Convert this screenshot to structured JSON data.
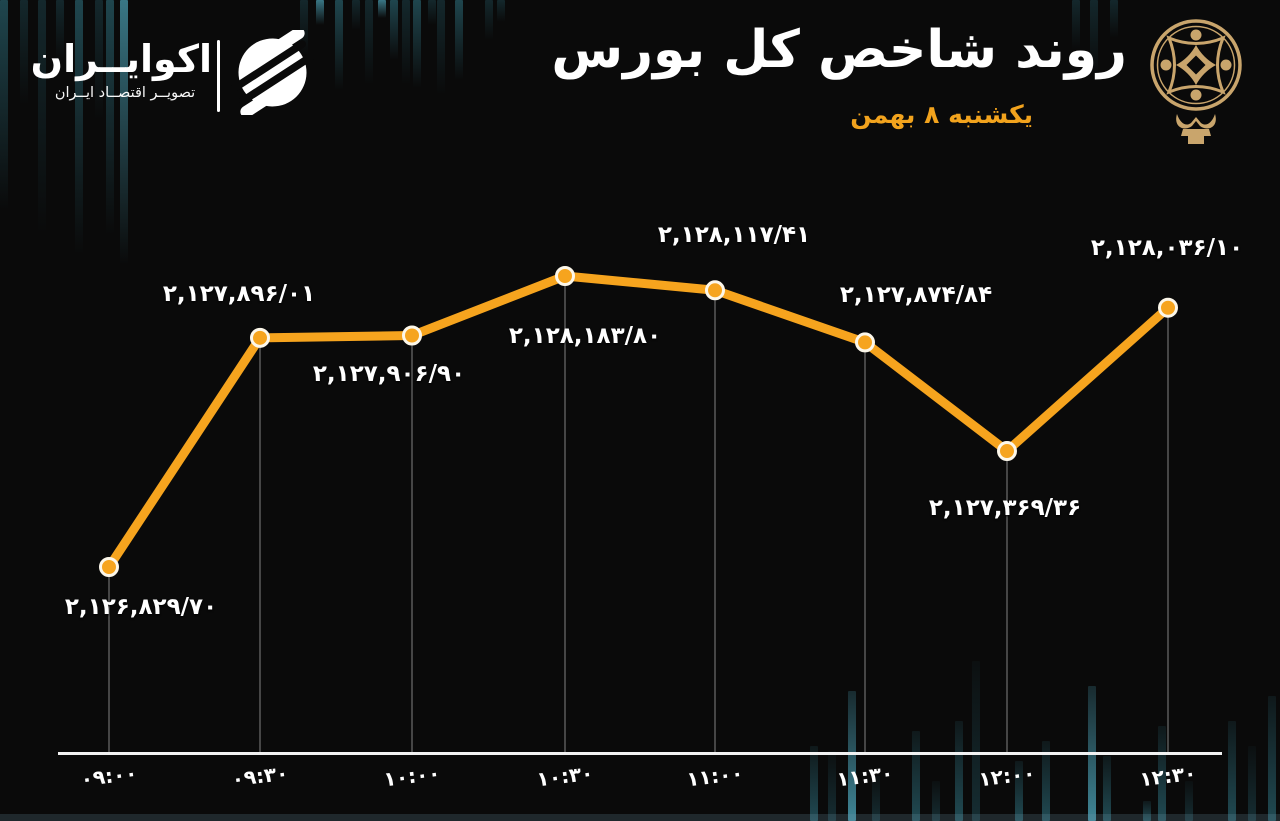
{
  "brand": {
    "name": "اکوایــران",
    "tagline": "تصویــر اقتصــاد ایــران"
  },
  "header": {
    "title": "روند شاخص کل بورس",
    "date": "یکشنبه ۸ بهمن"
  },
  "icons": {
    "brand_logo": "ecoiran-winged-circle",
    "emblem": "tehran-stock-exchange-emblem"
  },
  "colors": {
    "background": "#0a0a0a",
    "line": "#F6A41E",
    "point_fill": "#F6A41E",
    "point_ring": "#FCF7EA",
    "value_text": "#FFFFFF",
    "date_text": "#F2A31D",
    "axis": "#F2F2F2",
    "drop_line": "#5a5a5a",
    "emblem_gold": "#C9A56C"
  },
  "chart_data": {
    "type": "line",
    "title": "روند شاخص کل بورس",
    "x": [
      "۰۹:۰۰",
      "۰۹:۳۰",
      "۱۰:۰۰",
      "۱۰:۳۰",
      "۱۱:۰۰",
      "۱۱:۳۰",
      "۱۲:۰۰",
      "۱۲:۳۰"
    ],
    "values": [
      2126829.7,
      2127896.01,
      2127906.9,
      2128183.8,
      2128117.41,
      2127874.84,
      2127369.36,
      2128036.1
    ],
    "value_labels": [
      "۲,۱۲۶,۸۲۹/۷۰",
      "۲,۱۲۷,۸۹۶/۰۱",
      "۲,۱۲۷,۹۰۶/۹۰",
      "۲,۱۲۸,۱۸۳/۸۰",
      "۲,۱۲۸,۱۱۷/۴۱",
      "۲,۱۲۷,۸۷۴/۸۴",
      "۲,۱۲۷,۳۶۹/۳۶",
      "۲,۱۲۸,۰۳۶/۱۰"
    ],
    "label_position": [
      "below",
      "above",
      "below",
      "below",
      "above",
      "above",
      "below",
      "above"
    ],
    "xlabel": "",
    "ylabel": "",
    "ylim": [
      2126750,
      2128250
    ],
    "grid": "off",
    "legend": "none"
  }
}
